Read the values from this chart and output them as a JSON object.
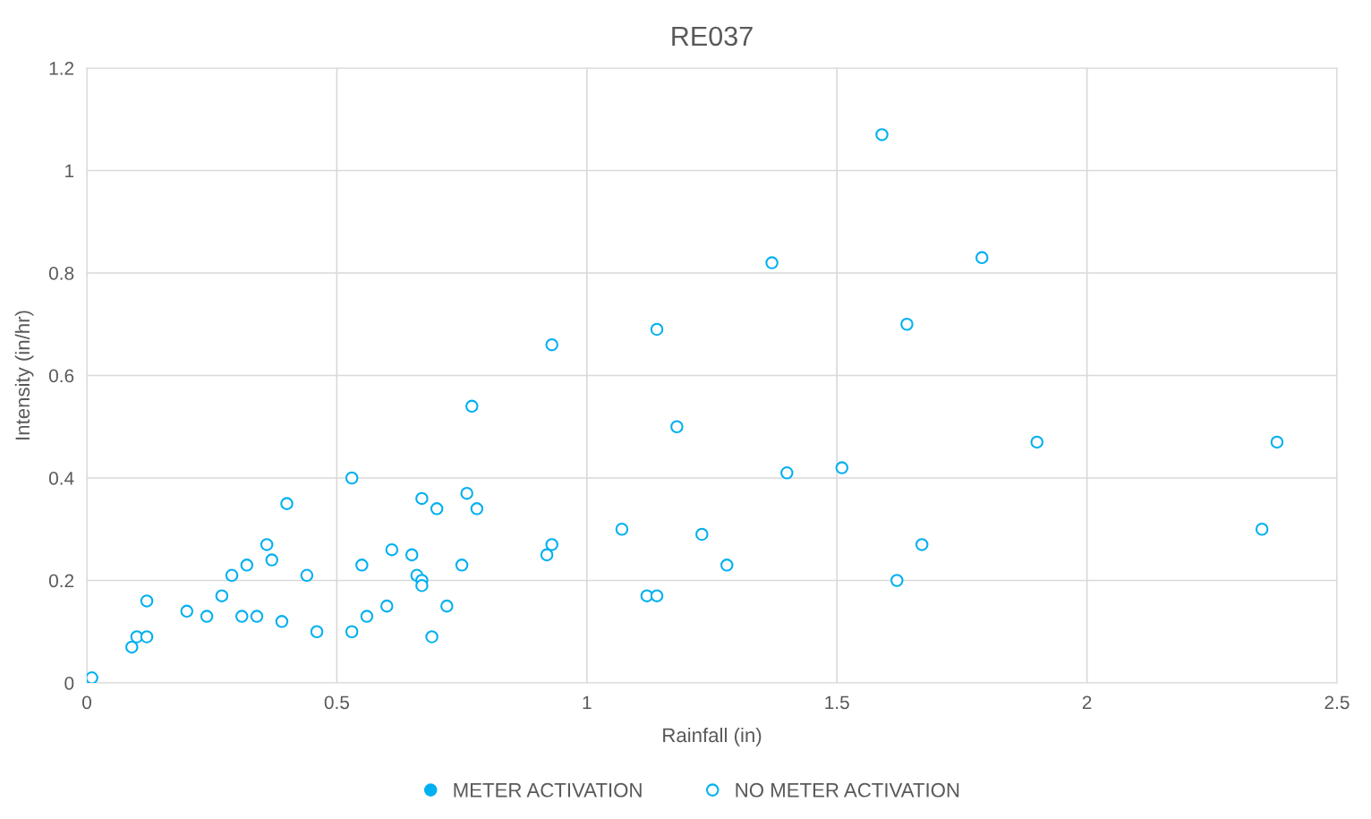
{
  "chart_data": {
    "type": "scatter",
    "title": "RE037",
    "xlabel": "Rainfall (in)",
    "ylabel": "Intensity (in/hr)",
    "xlim": [
      0,
      2.5
    ],
    "xticks": [
      0,
      0.5,
      1,
      1.5,
      2,
      2.5
    ],
    "ylim": [
      0,
      1.2
    ],
    "yticks": [
      0,
      0.2,
      0.4,
      0.6,
      0.8,
      1,
      1.2
    ],
    "grid": true,
    "legend": "bottom",
    "marker": "circle",
    "series": [
      {
        "name": "METER ACTIVATION",
        "color": "#00b0f0"
      },
      {
        "name": "NO METER ACTIVATION",
        "color": "#00b0f0",
        "x": [
          0.01,
          0.09,
          0.1,
          0.12,
          0.12,
          0.2,
          0.24,
          0.27,
          0.29,
          0.31,
          0.32,
          0.34,
          0.36,
          0.37,
          0.39,
          0.4,
          0.44,
          0.46,
          0.53,
          0.53,
          0.55,
          0.56,
          0.6,
          0.61,
          0.65,
          0.66,
          0.67,
          0.67,
          0.67,
          0.69,
          0.7,
          0.72,
          0.75,
          0.76,
          0.77,
          0.78,
          0.92,
          0.93,
          0.93,
          1.07,
          1.12,
          1.14,
          1.14,
          1.18,
          1.23,
          1.28,
          1.37,
          1.4,
          1.51,
          1.59,
          1.62,
          1.64,
          1.67,
          1.79,
          1.9,
          2.35,
          2.38
        ],
        "values": [
          0.01,
          0.07,
          0.09,
          0.09,
          0.16,
          0.14,
          0.13,
          0.17,
          0.21,
          0.13,
          0.23,
          0.13,
          0.27,
          0.24,
          0.12,
          0.35,
          0.21,
          0.1,
          0.4,
          0.1,
          0.23,
          0.13,
          0.15,
          0.26,
          0.25,
          0.21,
          0.36,
          0.2,
          0.19,
          0.09,
          0.34,
          0.15,
          0.23,
          0.37,
          0.54,
          0.34,
          0.25,
          0.27,
          0.66,
          0.3,
          0.17,
          0.17,
          0.69,
          0.5,
          0.29,
          0.23,
          0.82,
          0.41,
          0.42,
          1.07,
          0.2,
          0.7,
          0.27,
          0.83,
          0.47,
          0.3,
          0.47
        ]
      }
    ]
  }
}
